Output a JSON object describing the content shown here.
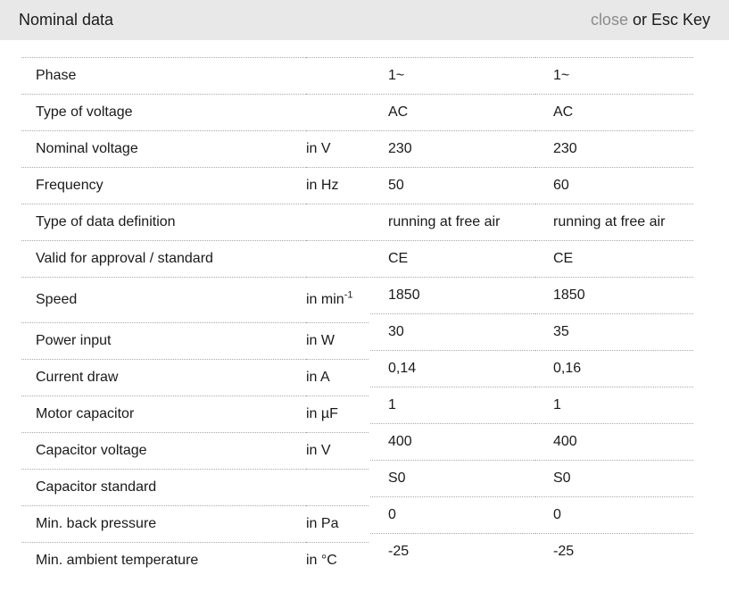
{
  "header": {
    "title": "Nominal data",
    "close_label": "close",
    "esc_hint": "or Esc Key"
  },
  "colors": {
    "header_bg": "#e8e8e8",
    "divider": "#a9a9a9",
    "close_link": "#8c8c8c",
    "text": "#1a1a1a"
  },
  "table": {
    "rows": [
      {
        "label": "Phase",
        "unit": "",
        "unit_sup": "",
        "values": [
          "1~",
          "1~"
        ]
      },
      {
        "label": "Type of voltage",
        "unit": "",
        "unit_sup": "",
        "values": [
          "AC",
          "AC"
        ]
      },
      {
        "label": "Nominal voltage",
        "unit": "in V",
        "unit_sup": "",
        "values": [
          "230",
          "230"
        ]
      },
      {
        "label": "Frequency",
        "unit": "in Hz",
        "unit_sup": "",
        "values": [
          "50",
          "60"
        ]
      },
      {
        "label": "Type of data definition",
        "unit": "",
        "unit_sup": "",
        "values": [
          "running at free air",
          "running at free air"
        ]
      },
      {
        "label": "Valid for approval / standard",
        "unit": "",
        "unit_sup": "",
        "values": [
          "CE",
          "CE"
        ]
      },
      {
        "label": "Speed",
        "unit": "in min",
        "unit_sup": "-1",
        "values": [
          "1850",
          "1850"
        ]
      },
      {
        "label": "Power input",
        "unit": "in W",
        "unit_sup": "",
        "values": [
          "30",
          "35"
        ]
      },
      {
        "label": "Current draw",
        "unit": "in A",
        "unit_sup": "",
        "values": [
          "0,14",
          "0,16"
        ]
      },
      {
        "label": "Motor capacitor",
        "unit": "in µF",
        "unit_sup": "",
        "values": [
          "1",
          "1"
        ]
      },
      {
        "label": "Capacitor voltage",
        "unit": "in V",
        "unit_sup": "",
        "values": [
          "400",
          "400"
        ]
      },
      {
        "label": "Capacitor standard",
        "unit": "",
        "unit_sup": "",
        "values": [
          "S0",
          "S0"
        ]
      },
      {
        "label": "Min. back pressure",
        "unit": "in Pa",
        "unit_sup": "",
        "values": [
          "0",
          "0"
        ]
      },
      {
        "label": "Min. ambient temperature",
        "unit": "in °C",
        "unit_sup": "",
        "values": [
          "-25",
          "-25"
        ]
      }
    ]
  }
}
